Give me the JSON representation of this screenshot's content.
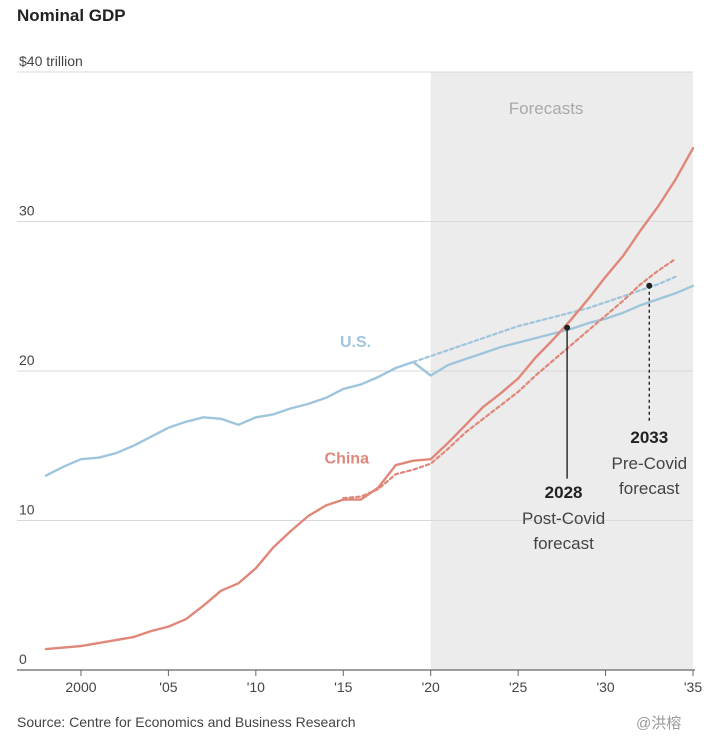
{
  "title": "Nominal GDP",
  "source": "Source: Centre for Economics and Business Research",
  "watermark": "@洪榕",
  "forecast_label": "Forecasts",
  "chart_data": {
    "type": "line",
    "title": "Nominal GDP",
    "xlim": [
      1998,
      2035
    ],
    "ylim": [
      0,
      40
    ],
    "ylabel_unit": "$40 trillion",
    "y_ticks": [
      {
        "value": 0,
        "label": "0"
      },
      {
        "value": 10,
        "label": "10"
      },
      {
        "value": 20,
        "label": "20"
      },
      {
        "value": 30,
        "label": "30"
      },
      {
        "value": 40,
        "label": "$40 trillion"
      }
    ],
    "x_ticks": [
      {
        "value": 2000,
        "label": "2000"
      },
      {
        "value": 2005,
        "label": "'05"
      },
      {
        "value": 2010,
        "label": "'10"
      },
      {
        "value": 2015,
        "label": "'15"
      },
      {
        "value": 2020,
        "label": "'20"
      },
      {
        "value": 2025,
        "label": "'25"
      },
      {
        "value": 2030,
        "label": "'30"
      },
      {
        "value": 2035,
        "label": "'35"
      }
    ],
    "forecast_region": [
      2020,
      2035
    ],
    "grid": true,
    "colors": {
      "us": "#9fc5dd",
      "china": "#e0877a",
      "forecast_bg": "#ececec",
      "annotation": "#222222"
    },
    "series": [
      {
        "name": "U.S.",
        "key": "us",
        "style": "solid",
        "x": [
          1998,
          1999,
          2000,
          2001,
          2002,
          2003,
          2004,
          2005,
          2006,
          2007,
          2008,
          2009,
          2010,
          2011,
          2012,
          2013,
          2014,
          2015,
          2016,
          2017,
          2018,
          2019,
          2020,
          2021,
          2022,
          2023,
          2024,
          2025,
          2026,
          2027,
          2028,
          2029,
          2030,
          2031,
          2032,
          2033,
          2034,
          2035
        ],
        "y": [
          13.0,
          13.6,
          14.1,
          14.2,
          14.5,
          15.0,
          15.6,
          16.2,
          16.6,
          16.9,
          16.8,
          16.4,
          16.9,
          17.1,
          17.5,
          17.8,
          18.2,
          18.8,
          19.1,
          19.6,
          20.2,
          20.6,
          19.7,
          20.4,
          20.8,
          21.2,
          21.6,
          21.9,
          22.2,
          22.5,
          22.8,
          23.2,
          23.5,
          23.9,
          24.4,
          24.8,
          25.2,
          25.7
        ]
      },
      {
        "name": "U.S. pre-Covid forecast",
        "key": "us",
        "style": "dashed",
        "x": [
          2019,
          2020,
          2021,
          2022,
          2023,
          2024,
          2025,
          2026,
          2027,
          2028,
          2029,
          2030,
          2031,
          2032,
          2033,
          2034
        ],
        "y": [
          20.6,
          21.0,
          21.4,
          21.8,
          22.2,
          22.6,
          23.0,
          23.3,
          23.6,
          23.9,
          24.2,
          24.6,
          25.0,
          25.4,
          25.8,
          26.3
        ]
      },
      {
        "name": "China",
        "key": "china",
        "style": "solid",
        "x": [
          1998,
          1999,
          2000,
          2001,
          2002,
          2003,
          2004,
          2005,
          2006,
          2007,
          2008,
          2009,
          2010,
          2011,
          2012,
          2013,
          2014,
          2015,
          2016,
          2017,
          2018,
          2019,
          2020,
          2021,
          2022,
          2023,
          2024,
          2025,
          2026,
          2027,
          2028,
          2029,
          2030,
          2031,
          2032,
          2033,
          2034,
          2035
        ],
        "y": [
          1.4,
          1.5,
          1.6,
          1.8,
          2.0,
          2.2,
          2.6,
          2.9,
          3.4,
          4.3,
          5.3,
          5.8,
          6.8,
          8.2,
          9.3,
          10.3,
          11.0,
          11.4,
          11.4,
          12.2,
          13.7,
          14.0,
          14.1,
          15.2,
          16.4,
          17.6,
          18.5,
          19.5,
          20.9,
          22.1,
          23.4,
          24.8,
          26.3,
          27.7,
          29.4,
          31.0,
          32.8,
          34.9
        ]
      },
      {
        "name": "China pre-Covid forecast",
        "key": "china",
        "style": "dashed",
        "x": [
          2015,
          2016,
          2017,
          2018,
          2019,
          2020,
          2021,
          2022,
          2023,
          2024,
          2025,
          2026,
          2027,
          2028,
          2029,
          2030,
          2031,
          2032,
          2033,
          2034
        ],
        "y": [
          11.5,
          11.6,
          12.1,
          13.1,
          13.4,
          13.8,
          14.8,
          15.9,
          16.8,
          17.7,
          18.6,
          19.7,
          20.7,
          21.7,
          22.7,
          23.7,
          24.7,
          25.8,
          26.7,
          27.5
        ]
      }
    ],
    "series_labels": [
      {
        "text": "U.S.",
        "key": "us",
        "x": 2015.7,
        "y": 21.6
      },
      {
        "text": "China",
        "key": "china",
        "x": 2015.2,
        "y": 13.8
      }
    ],
    "annotations": [
      {
        "year": "2028",
        "text1": "Post-Covid",
        "text2": "forecast",
        "style": "solid",
        "point": {
          "x": 2027.8,
          "y": 22.9
        },
        "line_to_y": 12.8,
        "label_x": 2027.6,
        "label_y": 11.5
      },
      {
        "year": "2033",
        "text1": "Pre-Covid",
        "text2": "forecast",
        "style": "dashed",
        "point": {
          "x": 2032.5,
          "y": 25.7
        },
        "line_to_y": 16.5,
        "label_x": 2032.5,
        "label_y": 15.2
      }
    ]
  }
}
